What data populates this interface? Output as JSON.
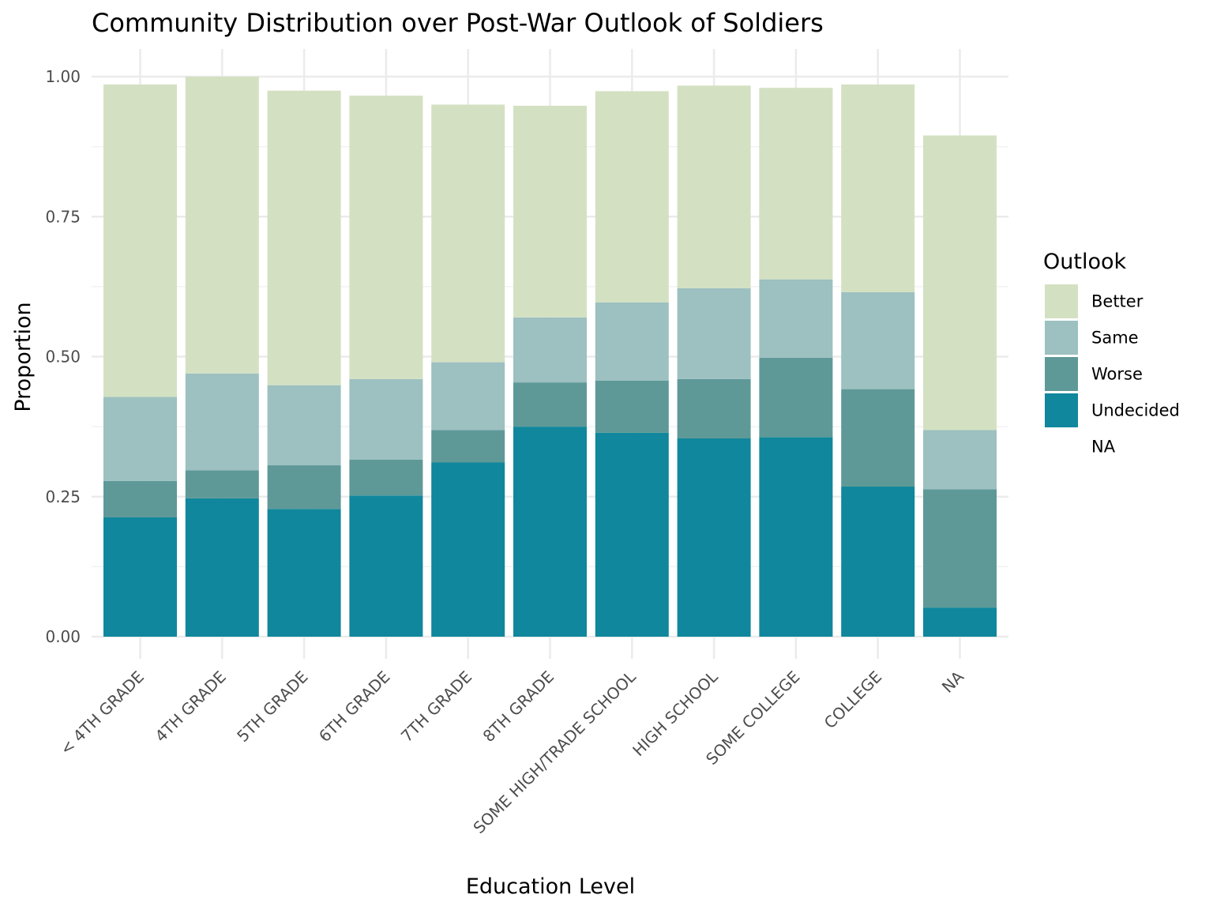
{
  "chart_data": {
    "type": "bar",
    "stacked": true,
    "title": "Community Distribution over Post-War Outlook of Soldiers",
    "xlabel": "Education Level",
    "ylabel": "Proportion",
    "ylim": [
      0,
      1.04
    ],
    "yticks": [
      "0.00",
      "0.25",
      "0.50",
      "0.75",
      "1.00"
    ],
    "ytick_values": [
      0,
      0.25,
      0.5,
      0.75,
      1.0
    ],
    "grid": true,
    "legend_position": "right",
    "legend_title": "Outlook",
    "legend_items": [
      {
        "label": "Better",
        "color": "#d3e1c2"
      },
      {
        "label": "Same",
        "color": "#9dc0c0"
      },
      {
        "label": "Worse",
        "color": "#5e9998"
      },
      {
        "label": "Undecided",
        "color": "#10879c"
      },
      {
        "label": "NA",
        "color": ""
      }
    ],
    "categories": [
      "< 4TH GRADE",
      "4TH GRADE",
      "5TH GRADE",
      "6TH GRADE",
      "7TH GRADE",
      "8TH GRADE",
      "SOME HIGH/TRADE SCHOOL",
      "HIGH SCHOOL",
      "SOME COLLEGE",
      "COLLEGE",
      "NA"
    ],
    "series": [
      {
        "name": "Undecided",
        "color": "#10879c",
        "values": [
          0.213,
          0.247,
          0.228,
          0.252,
          0.311,
          0.375,
          0.364,
          0.354,
          0.356,
          0.268,
          0.052
        ]
      },
      {
        "name": "Worse",
        "color": "#5e9998",
        "values": [
          0.065,
          0.05,
          0.078,
          0.064,
          0.058,
          0.079,
          0.093,
          0.106,
          0.142,
          0.174,
          0.211
        ]
      },
      {
        "name": "Same",
        "color": "#9dc0c0",
        "values": [
          0.15,
          0.173,
          0.143,
          0.144,
          0.121,
          0.116,
          0.14,
          0.162,
          0.14,
          0.173,
          0.106
        ]
      },
      {
        "name": "Better",
        "color": "#d3e1c2",
        "values": [
          0.558,
          0.53,
          0.526,
          0.506,
          0.46,
          0.378,
          0.377,
          0.362,
          0.342,
          0.371,
          0.526
        ]
      }
    ]
  }
}
